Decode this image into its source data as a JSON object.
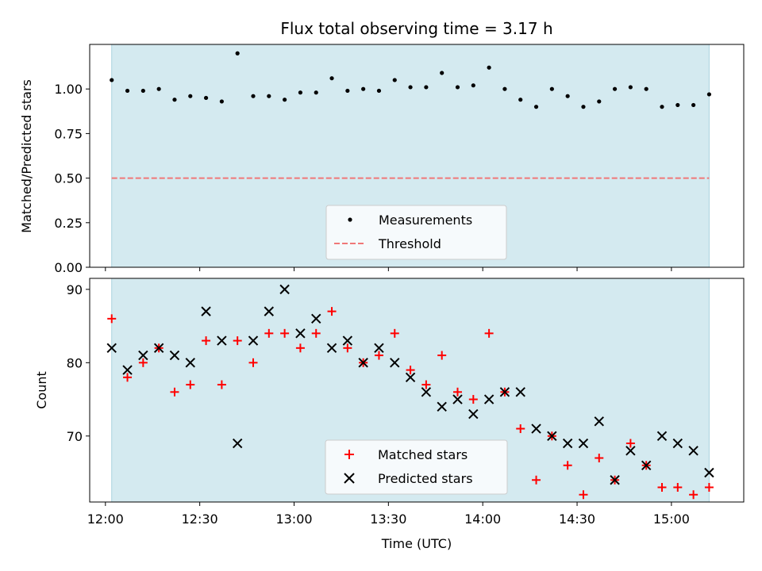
{
  "chart_data": [
    {
      "type": "scatter",
      "title": "Flux total observing time = 3.17 h",
      "ylabel": "Matched/Predicted stars",
      "ylim": [
        0,
        1.25
      ],
      "yticks": [
        0.0,
        0.25,
        0.5,
        0.75,
        1.0
      ],
      "ytick_labels": [
        "0.00",
        "0.25",
        "0.50",
        "0.75",
        "1.00"
      ],
      "xlim": [
        "11:55",
        "15:23"
      ],
      "shaded_span": [
        "12:02",
        "15:12"
      ],
      "shade_color": "#d4eaf0",
      "threshold": 0.5,
      "threshold_color": "#f07878",
      "legend_location": "lower center",
      "series": [
        {
          "name": "Measurements",
          "marker": "dot",
          "color": "#000000",
          "x": [
            "12:02",
            "12:07",
            "12:12",
            "12:17",
            "12:22",
            "12:27",
            "12:32",
            "12:37",
            "12:42",
            "12:47",
            "12:52",
            "12:57",
            "13:02",
            "13:07",
            "13:12",
            "13:17",
            "13:22",
            "13:27",
            "13:32",
            "13:37",
            "13:42",
            "13:47",
            "13:52",
            "13:57",
            "14:02",
            "14:07",
            "14:12",
            "14:17",
            "14:22",
            "14:27",
            "14:32",
            "14:37",
            "14:42",
            "14:47",
            "14:52",
            "14:57",
            "15:02",
            "15:07",
            "15:12"
          ],
          "y": [
            1.05,
            0.99,
            0.99,
            1.0,
            0.94,
            0.96,
            0.95,
            0.93,
            1.2,
            0.96,
            0.96,
            0.94,
            0.98,
            0.98,
            1.06,
            0.99,
            1.0,
            0.99,
            1.05,
            1.01,
            1.01,
            1.09,
            1.01,
            1.02,
            1.12,
            1.0,
            0.94,
            0.9,
            1.0,
            0.96,
            0.9,
            0.93,
            1.0,
            1.01,
            1.0,
            0.9,
            0.91,
            0.91,
            0.97
          ]
        },
        {
          "name": "Threshold",
          "marker": "dashed-line",
          "color": "#f07878",
          "y": 0.5
        }
      ]
    },
    {
      "type": "scatter",
      "xlabel": "Time (UTC)",
      "ylabel": "Count",
      "ylim": [
        61,
        91.5
      ],
      "yticks": [
        70,
        80,
        90
      ],
      "ytick_labels": [
        "70",
        "80",
        "90"
      ],
      "xlim": [
        "11:55",
        "15:23"
      ],
      "xticks": [
        "12:00",
        "12:30",
        "13:00",
        "13:30",
        "14:00",
        "14:30",
        "15:00"
      ],
      "xtick_labels": [
        "12:00",
        "12:30",
        "13:00",
        "13:30",
        "14:00",
        "14:30",
        "15:00"
      ],
      "shaded_span": [
        "12:02",
        "15:12"
      ],
      "shade_color": "#d4eaf0",
      "legend_location": "lower center",
      "series": [
        {
          "name": "Matched stars",
          "marker": "plus",
          "color": "#ff0000",
          "x": [
            "12:02",
            "12:07",
            "12:12",
            "12:17",
            "12:22",
            "12:27",
            "12:32",
            "12:37",
            "12:42",
            "12:47",
            "12:52",
            "12:57",
            "13:02",
            "13:07",
            "13:12",
            "13:17",
            "13:22",
            "13:27",
            "13:32",
            "13:37",
            "13:42",
            "13:47",
            "13:52",
            "13:57",
            "14:02",
            "14:07",
            "14:12",
            "14:17",
            "14:22",
            "14:27",
            "14:32",
            "14:37",
            "14:42",
            "14:47",
            "14:52",
            "14:57",
            "15:02",
            "15:07",
            "15:12"
          ],
          "y": [
            86,
            78,
            80,
            82,
            76,
            77,
            83,
            77,
            83,
            80,
            84,
            84,
            82,
            84,
            87,
            82,
            80,
            81,
            84,
            79,
            77,
            81,
            76,
            75,
            84,
            76,
            71,
            64,
            70,
            66,
            62,
            67,
            64,
            69,
            66,
            63,
            63,
            62,
            63
          ]
        },
        {
          "name": "Predicted stars",
          "marker": "x",
          "color": "#000000",
          "x": [
            "12:02",
            "12:07",
            "12:12",
            "12:17",
            "12:22",
            "12:27",
            "12:32",
            "12:37",
            "12:42",
            "12:47",
            "12:52",
            "12:57",
            "13:02",
            "13:07",
            "13:12",
            "13:17",
            "13:22",
            "13:27",
            "13:32",
            "13:37",
            "13:42",
            "13:47",
            "13:52",
            "13:57",
            "14:02",
            "14:07",
            "14:12",
            "14:17",
            "14:22",
            "14:27",
            "14:32",
            "14:37",
            "14:42",
            "14:47",
            "14:52",
            "14:57",
            "15:02",
            "15:07",
            "15:12"
          ],
          "y": [
            82,
            79,
            81,
            82,
            81,
            80,
            87,
            83,
            69,
            83,
            87,
            90,
            84,
            86,
            82,
            83,
            80,
            82,
            80,
            78,
            76,
            74,
            75,
            73,
            75,
            76,
            76,
            71,
            70,
            69,
            69,
            72,
            64,
            68,
            66,
            70,
            69,
            68,
            65
          ]
        }
      ]
    }
  ]
}
